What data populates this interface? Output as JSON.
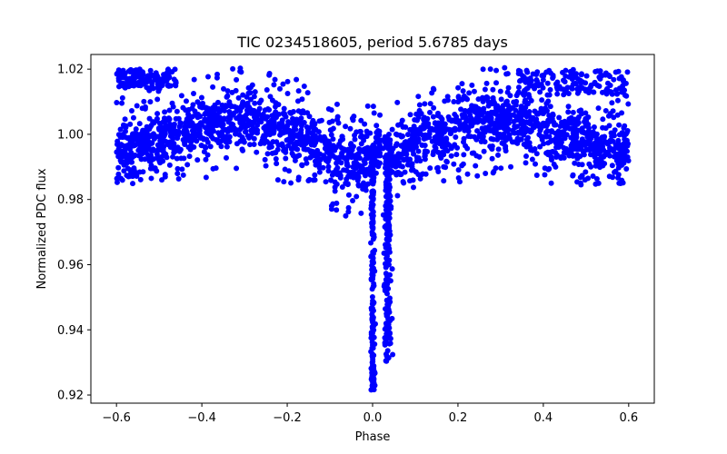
{
  "chart_data": {
    "type": "scatter",
    "title": "TIC 0234518605, period 5.6785 days",
    "xlabel": "Phase",
    "ylabel": "Normalized PDC flux",
    "xlim": [
      -0.66,
      0.66
    ],
    "ylim": [
      0.9175,
      1.0245
    ],
    "xticks": [
      -0.6,
      -0.4,
      -0.2,
      0.0,
      0.2,
      0.4,
      0.6
    ],
    "xtick_labels": [
      "−0.6",
      "−0.4",
      "−0.2",
      "0.0",
      "0.2",
      "0.4",
      "0.6"
    ],
    "yticks": [
      0.92,
      0.94,
      0.96,
      0.98,
      1.0,
      1.02
    ],
    "ytick_labels": [
      "0.92",
      "0.94",
      "0.96",
      "0.98",
      "1.00",
      "1.02"
    ],
    "grid": false,
    "marker_color": "#0000ff",
    "series": [
      {
        "name": "light curve",
        "x_range": [
          -0.6,
          0.6
        ],
        "baseline_flux": 1.0,
        "scatter_sigma": 0.0045,
        "primary_eclipse": {
          "phase": 0.03,
          "depth": 0.07,
          "min_flux": 0.921
        },
        "secondary_dip_flux": 0.988
      }
    ]
  }
}
